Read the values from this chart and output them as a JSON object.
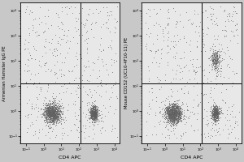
{
  "panel1": {
    "ylabel": "Armenian Hamster IgG PE",
    "xlabel": "CD4 APC",
    "gate_x": 120.0,
    "gate_y": 12.0,
    "background_color": "#e8e8e8",
    "dot_color": "#666666",
    "contour_color": "#555555",
    "xlim": [
      0.05,
      20000
    ],
    "ylim": [
      0.05,
      20000
    ],
    "cluster1_x": 3.0,
    "cluster1_y": 0.8,
    "cluster2_x": 700.0,
    "cluster2_y": 0.8
  },
  "panel2": {
    "ylabel": "Mouse CD152 (UC10-4F10-11) PE",
    "xlabel": "CD4 APC",
    "gate_x": 120.0,
    "gate_y": 12.0,
    "background_color": "#e8e8e8",
    "dot_color": "#666666",
    "contour_color": "#555555",
    "xlim": [
      0.05,
      20000
    ],
    "ylim": [
      0.05,
      20000
    ],
    "cluster1_x": 3.0,
    "cluster1_y": 0.8,
    "cluster2_x": 700.0,
    "cluster2_y": 0.8,
    "ctla4_x": 700.0,
    "ctla4_y": 120.0
  },
  "figure_bg": "#c8c8c8",
  "xtick_vals": [
    0.1,
    1,
    10,
    100,
    1000,
    10000
  ],
  "ytick_vals": [
    0.1,
    1,
    10,
    100,
    1000,
    10000
  ],
  "xtick_labels": [
    "$10^{-1}$",
    "$10^0$",
    "$10^1$",
    "$10^2$",
    "$10^3$",
    "$10^4$"
  ],
  "ytick_labels": [
    "$10^{-1}$",
    "$10^0$",
    "$10^1$",
    "$10^2$",
    "$10^3$",
    "$10^4$"
  ]
}
